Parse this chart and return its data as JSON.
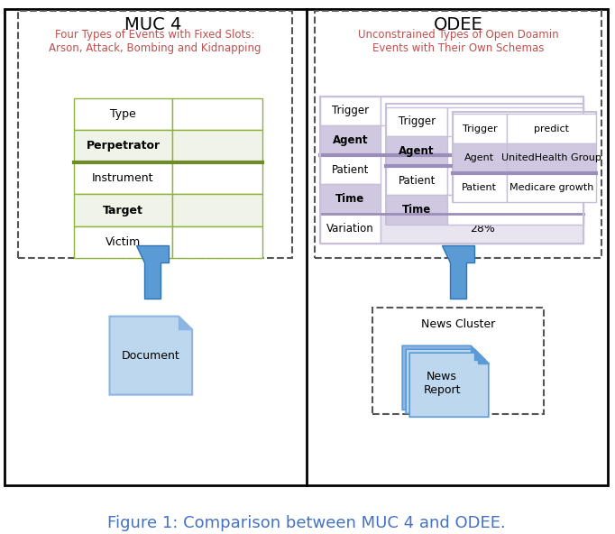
{
  "fig_width": 6.82,
  "fig_height": 5.92,
  "caption": "Figure 1: Comparison between MUC 4 and ODEE.",
  "caption_color": "#4472C4",
  "caption_fontsize": 13,
  "left_title": "MUC 4",
  "right_title": "ODEE",
  "title_fontsize": 14,
  "muc_desc": "Four Types of Events with Fixed Slots:\nArson, Attack, Bombing and Kidnapping",
  "odee_desc": "Unconstrained Types of Open Doamin\nEvents with Their Own Schemas",
  "desc_color": "#C0504D",
  "muc_rows": [
    "Type",
    "Perpetrator",
    "Instrument",
    "Target",
    "Victim"
  ],
  "muc_shaded": [
    1,
    3
  ],
  "muc_grid_color": "#8DB33B",
  "muc_grid_dark": "#6E8B2A",
  "muc_shaded_color": "#F0F4E8",
  "odee_col1": [
    "Trigger",
    "Agent",
    "Patient",
    "Time",
    "Variation"
  ],
  "odee_col1_shaded": [
    1,
    3
  ],
  "odee_col2_rows": [
    "Trigger",
    "Agent",
    "Patient",
    "Time"
  ],
  "odee_col2_shaded": [
    1,
    3
  ],
  "odee_col3_rows": [
    "Trigger",
    "Agent",
    "Patient"
  ],
  "purple_light": "#C8C0D8",
  "purple_mid": "#9B8EBB",
  "purple_fill": "#E8E4F0",
  "purple_agent_fill": "#D0C8E0",
  "arrow_color": "#5B9BD5",
  "arrow_edge": "#2E75B6"
}
